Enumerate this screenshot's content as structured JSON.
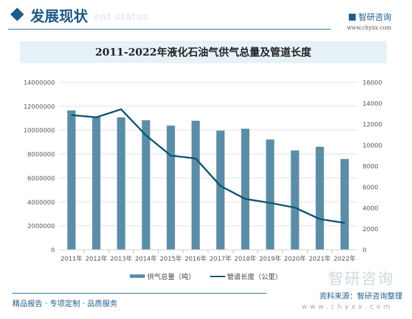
{
  "header": {
    "title": "发展现状",
    "subtitle": "ent status",
    "brand": "智研咨询",
    "brand_url": "www.chyxx.com"
  },
  "footer": {
    "tagline": "精品报告 · 专项定制 · 品质服务",
    "source": "资料来源：智研咨询整理",
    "watermark": "智研咨询",
    "url": "www.chyxx.com"
  },
  "colors": {
    "bar": "#5b8ea6",
    "line": "#0e5372",
    "accent": "#1f5c8c"
  },
  "chart_data": {
    "type": "bar+line",
    "title": "2011-2022年液化石油气供气总量及管道长度",
    "categories": [
      "2011年",
      "2012年",
      "2013年",
      "2014年",
      "2015年",
      "2016年",
      "2017年",
      "2018年",
      "2019年",
      "2020年",
      "2021年",
      "2022年"
    ],
    "series": [
      {
        "name": "供气总量（吨）",
        "type": "bar",
        "axis": "left",
        "values": [
          11650000,
          11100000,
          11070000,
          10830000,
          10380000,
          10790000,
          9960000,
          10120000,
          9220000,
          8300000,
          8610000,
          7590000
        ]
      },
      {
        "name": "管道长度（公里）",
        "type": "line",
        "axis": "right",
        "values": [
          12870,
          12660,
          13420,
          10930,
          9000,
          8720,
          6100,
          4850,
          4480,
          4020,
          2930,
          2560
        ]
      }
    ],
    "y_left": {
      "range": [
        0,
        14000000
      ],
      "ticks": [
        "0",
        "2000000",
        "4000000",
        "6000000",
        "8000000",
        "10000000",
        "12000000",
        "14000000"
      ]
    },
    "y_right": {
      "range": [
        0,
        16000
      ],
      "ticks": [
        "0",
        "2000",
        "4000",
        "6000",
        "8000",
        "10000",
        "12000",
        "14000",
        "16000"
      ]
    },
    "grid": true,
    "legend": "bottom"
  }
}
